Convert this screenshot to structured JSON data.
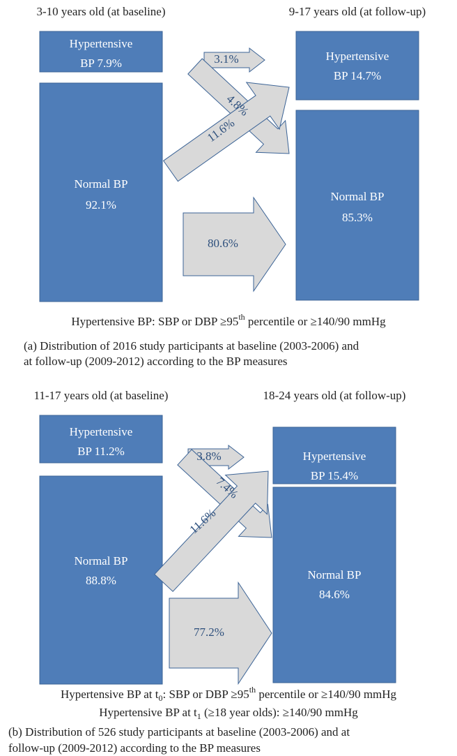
{
  "panels": [
    {
      "baseline_label": "3-10 years old (at baseline)",
      "followup_label": "9-17 years old (at follow-up)",
      "baseline_boxes": [
        {
          "lines": [
            "Hypertensive",
            "BP 7.9%"
          ]
        },
        {
          "lines": [
            "Normal BP",
            "92.1%"
          ]
        }
      ],
      "followup_boxes": [
        {
          "lines": [
            "Hypertensive",
            "BP 14.7%"
          ]
        },
        {
          "lines": [
            "Normal BP",
            "85.3%"
          ]
        }
      ],
      "arrows": [
        "3.1%",
        "4.8%",
        "11.6%",
        "80.6%"
      ],
      "note": [
        [
          {
            "text": "Hypertensive BP: SBP or DBP ≥95"
          },
          {
            "sup": "th"
          },
          {
            "text": " percentile or ≥140/90 mmHg"
          }
        ]
      ],
      "caption": [
        "(a)  Distribution of 2016 study participants at baseline (2003-2006) and",
        "at follow-up (2009-2012) according to the BP measures"
      ]
    },
    {
      "baseline_label": "11-17 years old (at baseline)",
      "followup_label": "18-24 years old (at follow-up)",
      "baseline_boxes": [
        {
          "lines": [
            "Hypertensive",
            "BP 11.2%"
          ]
        },
        {
          "lines": [
            "Normal BP",
            "88.8%"
          ]
        }
      ],
      "followup_boxes": [
        {
          "lines": [
            "Hypertensive",
            "BP 15.4%"
          ]
        },
        {
          "lines": [
            "Normal BP",
            "84.6%"
          ]
        }
      ],
      "arrows": [
        "3.8%",
        "7.4%",
        "11.6%",
        "77.2%"
      ],
      "note": [
        [
          {
            "text": "Hypertensive BP at t"
          },
          {
            "sub": "0"
          },
          {
            "text": ": SBP or DBP ≥95"
          },
          {
            "sup": "th"
          },
          {
            "text": " percentile or ≥140/90 mmHg"
          }
        ],
        [
          {
            "text": "Hypertensive BP at t"
          },
          {
            "sub": "1"
          },
          {
            "text": " (≥18 year olds): ≥140/90 mmHg"
          }
        ]
      ],
      "caption": [
        "(b)  Distribution of 526 study participants at baseline (2003-2006) and at",
        "follow-up (2009-2012) according to the BP measures"
      ]
    }
  ]
}
